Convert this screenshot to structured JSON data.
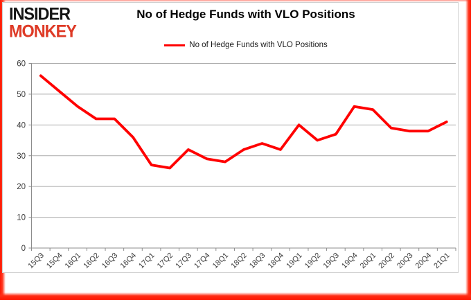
{
  "brand": {
    "line1": "INSIDER",
    "line2": "MONKEY",
    "red": "#DE3A26",
    "black": "#141414"
  },
  "header": {
    "title": "No of Hedge Funds with VLO Positions"
  },
  "legend": {
    "label": "No of Hedge Funds with VLO Positions",
    "line_color": "#FF0000"
  },
  "chart_data": {
    "type": "line",
    "title": "No of Hedge Funds with VLO Positions",
    "categories": [
      "15Q3",
      "15Q4",
      "16Q1",
      "16Q2",
      "16Q3",
      "16Q4",
      "17Q1",
      "17Q2",
      "17Q3",
      "17Q4",
      "18Q1",
      "18Q2",
      "18Q3",
      "18Q4",
      "19Q1",
      "19Q2",
      "19Q3",
      "19Q4",
      "20Q1",
      "20Q2",
      "20Q3",
      "20Q4",
      "21Q1"
    ],
    "series": [
      {
        "name": "No of Hedge Funds with VLO Positions",
        "color": "#FF0000",
        "values": [
          56,
          51,
          46,
          42,
          42,
          36,
          27,
          26,
          32,
          29,
          28,
          32,
          34,
          32,
          40,
          35,
          37,
          46,
          45,
          39,
          38,
          38,
          41
        ]
      }
    ],
    "xlabel": "",
    "ylabel": "",
    "ylim": [
      0,
      60
    ],
    "yticks": [
      0,
      10,
      20,
      30,
      40,
      50,
      60
    ],
    "grid": "horizontal",
    "legend_position": "top",
    "gridline_color": "#ABABAB",
    "axis_color": "#8C8C8C",
    "tick_label_color": "#3B3B3B"
  }
}
